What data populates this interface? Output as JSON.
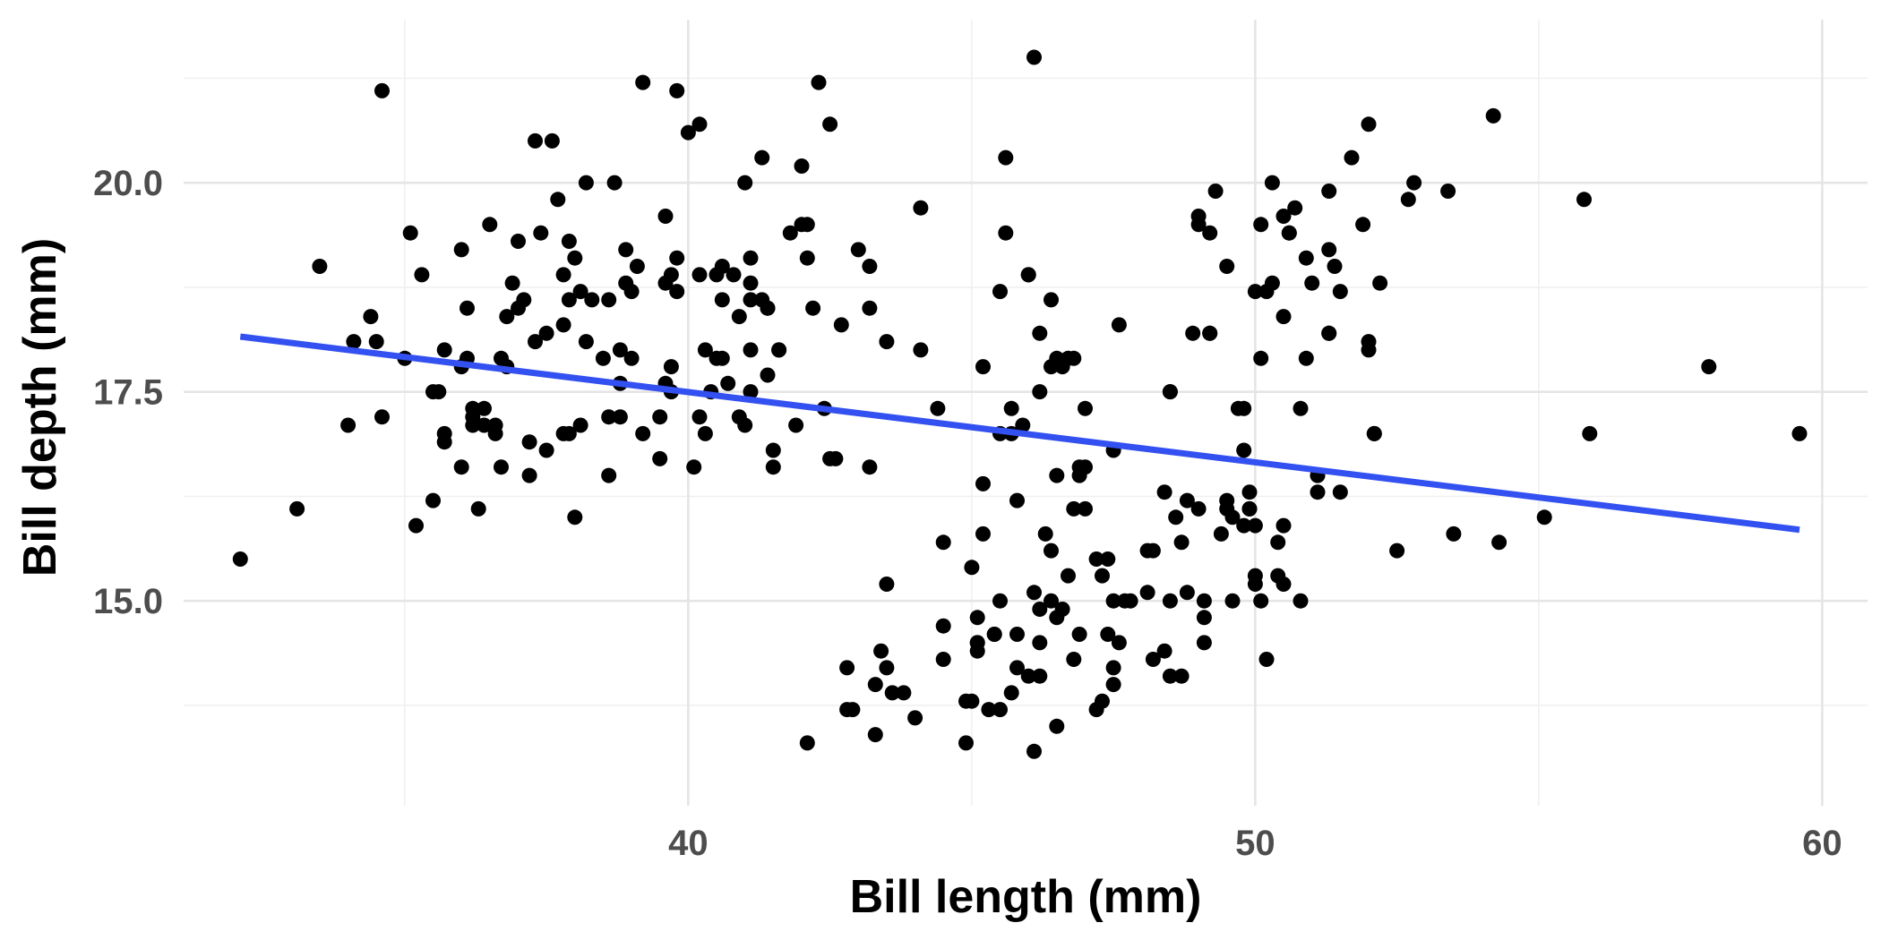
{
  "chart_data": {
    "type": "scatter",
    "title": "",
    "xlabel": "Bill length (mm)",
    "ylabel": "Bill depth (mm)",
    "xlim": [
      31.1,
      60.8
    ],
    "ylim": [
      12.55,
      21.95
    ],
    "x_ticks": [
      40,
      50,
      60
    ],
    "x_tick_labels": [
      "40",
      "50",
      "60"
    ],
    "x_minor_ticks": [
      35,
      45,
      55
    ],
    "y_ticks": [
      15.0,
      17.5,
      20.0
    ],
    "y_tick_labels": [
      "15.0",
      "17.5",
      "20.0"
    ],
    "y_minor_ticks": [
      13.75,
      16.25,
      18.75,
      21.25
    ],
    "grid": true,
    "legend": "none",
    "point_color": "#000000",
    "trend_line": {
      "type": "linear",
      "color": "#3350f0",
      "points": [
        [
          32.1,
          18.16
        ],
        [
          59.6,
          15.85
        ]
      ]
    },
    "points": [
      [
        32.1,
        15.5
      ],
      [
        33.1,
        16.1
      ],
      [
        33.5,
        19.0
      ],
      [
        34.0,
        17.1
      ],
      [
        34.1,
        18.1
      ],
      [
        34.4,
        18.4
      ],
      [
        34.5,
        18.1
      ],
      [
        34.6,
        21.1
      ],
      [
        34.6,
        17.2
      ],
      [
        35.0,
        17.9
      ],
      [
        35.1,
        19.4
      ],
      [
        35.2,
        15.9
      ],
      [
        35.3,
        18.9
      ],
      [
        35.5,
        16.2
      ],
      [
        35.5,
        17.5
      ],
      [
        35.6,
        17.5
      ],
      [
        35.7,
        18.0
      ],
      [
        35.7,
        17.0
      ],
      [
        35.7,
        16.9
      ],
      [
        36.0,
        19.2
      ],
      [
        36.0,
        16.6
      ],
      [
        36.0,
        17.8
      ],
      [
        36.1,
        17.9
      ],
      [
        36.1,
        18.5
      ],
      [
        36.2,
        17.1
      ],
      [
        36.2,
        17.2
      ],
      [
        36.3,
        16.1
      ],
      [
        36.4,
        17.3
      ],
      [
        36.4,
        17.1
      ],
      [
        36.5,
        19.5
      ],
      [
        36.6,
        17.1
      ],
      [
        36.6,
        17.0
      ],
      [
        36.7,
        16.6
      ],
      [
        36.7,
        17.9
      ],
      [
        36.8,
        17.8
      ],
      [
        36.8,
        18.4
      ],
      [
        36.9,
        18.8
      ],
      [
        37.0,
        18.5
      ],
      [
        37.0,
        19.3
      ],
      [
        37.1,
        18.6
      ],
      [
        37.2,
        16.5
      ],
      [
        37.2,
        16.9
      ],
      [
        37.3,
        18.1
      ],
      [
        37.4,
        19.4
      ],
      [
        37.5,
        18.2
      ],
      [
        37.5,
        16.8
      ],
      [
        37.6,
        20.5
      ],
      [
        37.8,
        18.3
      ],
      [
        37.8,
        18.9
      ],
      [
        37.8,
        17.0
      ],
      [
        37.9,
        18.6
      ],
      [
        37.9,
        19.3
      ],
      [
        38.0,
        16.0
      ],
      [
        38.0,
        19.1
      ],
      [
        38.1,
        18.7
      ],
      [
        38.1,
        17.1
      ],
      [
        38.2,
        20.0
      ],
      [
        38.2,
        18.1
      ],
      [
        38.3,
        18.6
      ],
      [
        38.6,
        17.2
      ],
      [
        38.6,
        18.6
      ],
      [
        38.6,
        16.5
      ],
      [
        38.7,
        20.0
      ],
      [
        38.8,
        17.2
      ],
      [
        38.8,
        17.6
      ],
      [
        38.9,
        19.2
      ],
      [
        39.0,
        17.9
      ],
      [
        39.2,
        21.2
      ],
      [
        39.2,
        17.0
      ],
      [
        39.5,
        17.2
      ],
      [
        39.6,
        18.8
      ],
      [
        39.6,
        17.6
      ],
      [
        39.7,
        17.5
      ],
      [
        39.7,
        17.8
      ],
      [
        39.8,
        19.1
      ],
      [
        39.8,
        18.7
      ],
      [
        39.6,
        19.6
      ],
      [
        39.8,
        21.1
      ],
      [
        40.0,
        20.6
      ],
      [
        40.1,
        16.6
      ],
      [
        40.2,
        17.2
      ],
      [
        40.2,
        18.9
      ],
      [
        40.2,
        20.7
      ],
      [
        40.3,
        17.0
      ],
      [
        40.3,
        18.0
      ],
      [
        40.4,
        17.5
      ],
      [
        40.5,
        18.9
      ],
      [
        40.6,
        18.6
      ],
      [
        40.6,
        17.9
      ],
      [
        40.7,
        17.6
      ],
      [
        40.9,
        17.2
      ],
      [
        40.9,
        18.4
      ],
      [
        41.0,
        17.1
      ],
      [
        41.0,
        20.0
      ],
      [
        41.1,
        18.8
      ],
      [
        41.1,
        18.0
      ],
      [
        41.1,
        18.6
      ],
      [
        41.1,
        19.1
      ],
      [
        41.3,
        18.6
      ],
      [
        41.3,
        20.3
      ],
      [
        41.4,
        18.5
      ],
      [
        41.4,
        17.7
      ],
      [
        41.5,
        16.8
      ],
      [
        41.5,
        16.6
      ],
      [
        41.6,
        18.0
      ],
      [
        41.6,
        18.0
      ],
      [
        41.8,
        19.4
      ],
      [
        41.9,
        17.1
      ],
      [
        42.0,
        19.5
      ],
      [
        42.1,
        19.5
      ],
      [
        42.1,
        13.3
      ],
      [
        42.2,
        18.5
      ],
      [
        42.3,
        21.2
      ],
      [
        42.4,
        17.3
      ],
      [
        42.5,
        16.7
      ],
      [
        42.5,
        20.7
      ],
      [
        42.7,
        18.3
      ],
      [
        42.8,
        14.2
      ],
      [
        42.8,
        13.7
      ],
      [
        42.9,
        13.7
      ],
      [
        43.2,
        16.6
      ],
      [
        43.2,
        18.5
      ],
      [
        43.2,
        19.0
      ],
      [
        43.3,
        13.4
      ],
      [
        43.4,
        14.4
      ],
      [
        43.5,
        18.1
      ],
      [
        43.5,
        15.2
      ],
      [
        43.6,
        13.9
      ],
      [
        43.8,
        13.9
      ],
      [
        44.0,
        13.6
      ],
      [
        44.1,
        18.0
      ],
      [
        44.1,
        19.7
      ],
      [
        44.4,
        17.3
      ],
      [
        44.5,
        15.7
      ],
      [
        44.5,
        14.3
      ],
      [
        44.9,
        13.3
      ],
      [
        45.0,
        15.4
      ],
      [
        45.1,
        14.5
      ],
      [
        45.2,
        16.4
      ],
      [
        45.2,
        17.8
      ],
      [
        45.2,
        15.8
      ],
      [
        45.3,
        13.7
      ],
      [
        45.4,
        14.6
      ],
      [
        45.5,
        13.7
      ],
      [
        45.5,
        18.7
      ],
      [
        45.6,
        20.3
      ],
      [
        45.7,
        17.0
      ],
      [
        45.8,
        14.6
      ],
      [
        45.9,
        17.1
      ],
      [
        46.1,
        21.5
      ],
      [
        46.2,
        18.2
      ],
      [
        46.2,
        14.5
      ],
      [
        46.4,
        15.0
      ],
      [
        46.5,
        17.9
      ],
      [
        46.8,
        14.3
      ],
      [
        46.9,
        16.6
      ],
      [
        47.0,
        17.3
      ],
      [
        47.2,
        13.7
      ],
      [
        47.5,
        15.0
      ],
      [
        47.8,
        15.0
      ],
      [
        48.1,
        15.1
      ],
      [
        48.2,
        14.3
      ],
      [
        48.4,
        14.4
      ],
      [
        48.5,
        15.0
      ],
      [
        48.7,
        14.1
      ],
      [
        48.8,
        16.2
      ],
      [
        49.0,
        19.5
      ],
      [
        49.1,
        15.0
      ],
      [
        49.2,
        18.2
      ],
      [
        49.3,
        19.9
      ],
      [
        49.5,
        16.2
      ],
      [
        49.6,
        16.0
      ],
      [
        49.8,
        16.8
      ],
      [
        49.9,
        16.1
      ],
      [
        50.0,
        15.2
      ],
      [
        50.1,
        17.9
      ],
      [
        50.2,
        18.7
      ],
      [
        50.3,
        20.0
      ],
      [
        50.4,
        15.7
      ],
      [
        50.5,
        19.6
      ],
      [
        50.6,
        19.4
      ],
      [
        50.7,
        19.7
      ],
      [
        50.8,
        17.3
      ],
      [
        51.0,
        18.8
      ],
      [
        51.1,
        16.5
      ],
      [
        51.3,
        19.9
      ],
      [
        51.4,
        19.0
      ],
      [
        51.5,
        18.7
      ],
      [
        51.7,
        20.3
      ],
      [
        51.9,
        19.5
      ],
      [
        52.0,
        18.1
      ],
      [
        52.1,
        17.0
      ],
      [
        52.2,
        18.8
      ],
      [
        52.5,
        15.6
      ],
      [
        52.7,
        19.8
      ],
      [
        52.8,
        20.0
      ],
      [
        53.4,
        19.9
      ],
      [
        53.5,
        15.8
      ],
      [
        54.2,
        20.8
      ],
      [
        54.3,
        15.7
      ],
      [
        55.1,
        16.0
      ],
      [
        55.8,
        19.8
      ],
      [
        55.9,
        17.0
      ],
      [
        58.0,
        17.8
      ],
      [
        59.6,
        17.0
      ],
      [
        40.6,
        19.0
      ],
      [
        41.1,
        17.5
      ],
      [
        39.0,
        18.7
      ],
      [
        38.5,
        17.9
      ],
      [
        37.7,
        19.8
      ],
      [
        39.1,
        19.0
      ],
      [
        36.2,
        17.3
      ],
      [
        37.3,
        20.5
      ],
      [
        40.8,
        18.9
      ],
      [
        39.5,
        16.7
      ],
      [
        42.0,
        20.2
      ],
      [
        40.5,
        17.9
      ],
      [
        38.8,
        18.0
      ],
      [
        37.9,
        17.0
      ],
      [
        42.6,
        16.7
      ],
      [
        43.0,
        19.2
      ],
      [
        41.4,
        18.5
      ],
      [
        42.1,
        19.1
      ],
      [
        38.9,
        18.8
      ],
      [
        39.7,
        18.9
      ],
      [
        45.1,
        14.5
      ],
      [
        46.5,
        14.8
      ],
      [
        44.5,
        14.7
      ],
      [
        45.4,
        14.6
      ],
      [
        46.1,
        13.2
      ],
      [
        47.4,
        14.6
      ],
      [
        46.4,
        15.6
      ],
      [
        47.5,
        14.0
      ],
      [
        49.1,
        14.8
      ],
      [
        46.3,
        15.8
      ],
      [
        47.6,
        14.5
      ],
      [
        47.3,
        15.3
      ],
      [
        48.5,
        14.1
      ],
      [
        45.1,
        14.4
      ],
      [
        48.4,
        16.3
      ],
      [
        46.5,
        13.5
      ],
      [
        47.2,
        15.5
      ],
      [
        45.5,
        15.0
      ],
      [
        46.9,
        14.6
      ],
      [
        46.2,
        14.1
      ],
      [
        48.7,
        15.7
      ],
      [
        47.0,
        16.1
      ],
      [
        45.7,
        13.9
      ],
      [
        46.8,
        16.1
      ],
      [
        46.0,
        14.1
      ],
      [
        47.5,
        14.2
      ],
      [
        50.0,
        15.9
      ],
      [
        50.5,
        15.9
      ],
      [
        48.6,
        16.0
      ],
      [
        50.1,
        15.0
      ],
      [
        49.6,
        15.0
      ],
      [
        50.2,
        14.3
      ],
      [
        49.1,
        14.5
      ],
      [
        45.8,
        14.2
      ],
      [
        46.7,
        15.3
      ],
      [
        46.5,
        16.5
      ],
      [
        47.4,
        15.5
      ],
      [
        45.0,
        13.8
      ],
      [
        49.8,
        15.9
      ],
      [
        48.8,
        15.1
      ],
      [
        49.5,
        16.1
      ],
      [
        48.1,
        15.6
      ],
      [
        50.4,
        15.3
      ],
      [
        50.8,
        15.0
      ],
      [
        49.9,
        16.3
      ],
      [
        49.9,
        16.1
      ],
      [
        46.6,
        14.9
      ],
      [
        45.1,
        14.8
      ],
      [
        44.9,
        13.8
      ],
      [
        43.5,
        14.2
      ],
      [
        50.0,
        15.3
      ],
      [
        48.2,
        15.6
      ],
      [
        46.1,
        15.1
      ],
      [
        46.2,
        14.9
      ],
      [
        47.3,
        13.8
      ],
      [
        43.3,
        14.0
      ],
      [
        49.0,
        16.1
      ],
      [
        47.7,
        15.0
      ],
      [
        50.5,
        15.2
      ],
      [
        49.4,
        15.8
      ],
      [
        51.1,
        16.3
      ],
      [
        51.5,
        16.3
      ],
      [
        52.1,
        17.0
      ],
      [
        49.7,
        17.3
      ],
      [
        48.5,
        17.5
      ],
      [
        50.9,
        17.9
      ],
      [
        49.2,
        18.2
      ],
      [
        50.9,
        19.1
      ],
      [
        51.3,
        18.2
      ],
      [
        48.5,
        17.5
      ],
      [
        50.5,
        18.4
      ],
      [
        49.8,
        17.3
      ],
      [
        49.5,
        19.0
      ],
      [
        51.3,
        19.2
      ],
      [
        50.0,
        18.7
      ],
      [
        52.0,
        18.0
      ],
      [
        49.0,
        19.6
      ],
      [
        46.4,
        17.8
      ],
      [
        46.7,
        17.9
      ],
      [
        46.0,
        18.9
      ],
      [
        47.5,
        16.8
      ],
      [
        45.6,
        19.4
      ],
      [
        46.0,
        18.9
      ],
      [
        45.7,
        17.3
      ],
      [
        46.4,
        18.6
      ],
      [
        46.9,
        16.5
      ],
      [
        45.8,
        16.2
      ],
      [
        46.6,
        17.8
      ],
      [
        47.6,
        18.3
      ],
      [
        45.5,
        17.0
      ],
      [
        46.2,
        17.5
      ],
      [
        46.8,
        17.9
      ],
      [
        47.0,
        16.6
      ],
      [
        51.3,
        18.2
      ],
      [
        52.0,
        20.7
      ],
      [
        50.6,
        19.4
      ],
      [
        50.1,
        19.5
      ],
      [
        50.3,
        18.8
      ],
      [
        49.2,
        19.4
      ],
      [
        48.9,
        18.2
      ]
    ]
  }
}
